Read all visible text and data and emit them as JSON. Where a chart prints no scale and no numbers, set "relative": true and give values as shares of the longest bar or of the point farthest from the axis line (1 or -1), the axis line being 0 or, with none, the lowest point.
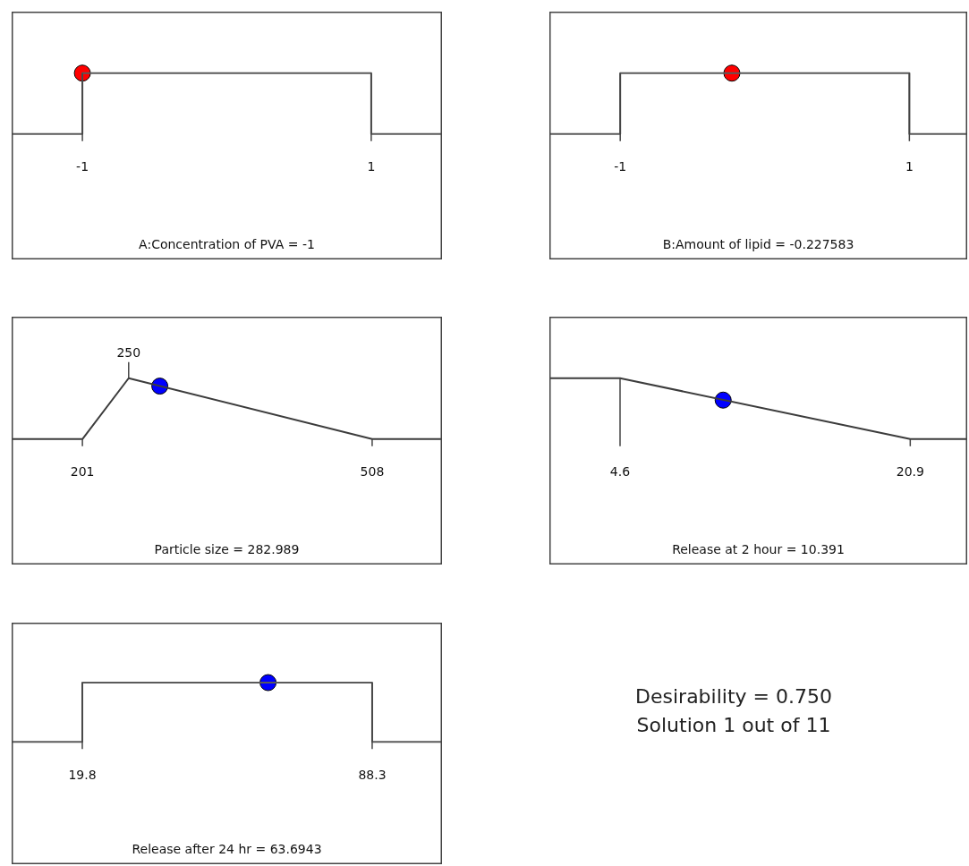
{
  "chart_data": [
    {
      "type": "line",
      "relative": true,
      "xlabel": "A:Concentration of PVA = -1",
      "xlim": [
        -1.49,
        1.49
      ],
      "xticks": [
        -1,
        1
      ],
      "series": [
        {
          "type": "line",
          "color": "#5a5a5a",
          "x": [
            -1.49,
            -1,
            -1,
            1,
            1,
            1.49
          ],
          "values": [
            0,
            0,
            1,
            1,
            0,
            0
          ]
        },
        {
          "type": "scatter",
          "color": "#ff0000",
          "marker": "circle",
          "x": [
            -1
          ],
          "values": [
            1
          ]
        }
      ]
    },
    {
      "type": "line",
      "relative": true,
      "xlabel": "B:Amount of lipid = -0.227583",
      "xlim": [
        -1.49,
        1.4
      ],
      "xticks": [
        -1,
        1
      ],
      "series": [
        {
          "type": "line",
          "color": "#5a5a5a",
          "x": [
            -1.49,
            -1,
            -1,
            1,
            1,
            1.4
          ],
          "values": [
            0,
            0,
            1,
            1,
            0,
            0
          ]
        },
        {
          "type": "scatter",
          "color": "#ff0000",
          "marker": "circle",
          "x": [
            -0.227583
          ],
          "values": [
            1
          ]
        }
      ]
    },
    {
      "type": "line",
      "relative": true,
      "xlabel": "Particle size = 282.989",
      "xlim": [
        126,
        582
      ],
      "xticks": [
        201,
        508
      ],
      "annotations": [
        {
          "text": "250",
          "x": 250,
          "y": 1
        }
      ],
      "series": [
        {
          "type": "line",
          "color": "#3c3c3c",
          "x": [
            126,
            201,
            250,
            508,
            582
          ],
          "values": [
            0,
            0,
            1,
            0,
            0
          ]
        },
        {
          "type": "scatter",
          "color": "#0000ff",
          "marker": "circle",
          "x": [
            282.989
          ],
          "values": [
            0.87
          ]
        }
      ]
    },
    {
      "type": "line",
      "relative": true,
      "xlabel": "Release at 2 hour = 10.391",
      "xlim": [
        0.63,
        24.1
      ],
      "xticks": [
        4.6,
        20.9
      ],
      "series": [
        {
          "type": "line",
          "color": "#3c3c3c",
          "x": [
            0.63,
            4.6,
            20.9,
            24.1
          ],
          "values": [
            1,
            1,
            0,
            0
          ]
        },
        {
          "type": "scatter",
          "color": "#0000ff",
          "marker": "circle",
          "x": [
            10.391
          ],
          "values": [
            0.64
          ]
        }
      ]
    },
    {
      "type": "line",
      "relative": true,
      "xlabel": "Release after 24 hr = 63.6943",
      "xlim": [
        3.1,
        104.8
      ],
      "xticks": [
        19.8,
        88.3
      ],
      "series": [
        {
          "type": "line",
          "color": "#5a5a5a",
          "x": [
            3.1,
            19.8,
            19.8,
            88.3,
            88.3,
            104.8
          ],
          "values": [
            0,
            0,
            1,
            1,
            0,
            0
          ]
        },
        {
          "type": "scatter",
          "color": "#0000ff",
          "marker": "circle",
          "x": [
            63.6943
          ],
          "values": [
            1
          ]
        }
      ]
    },
    {
      "type": "other",
      "annotations": [
        "Desirability = 0.750",
        "Solution 1 out of 11"
      ]
    }
  ]
}
